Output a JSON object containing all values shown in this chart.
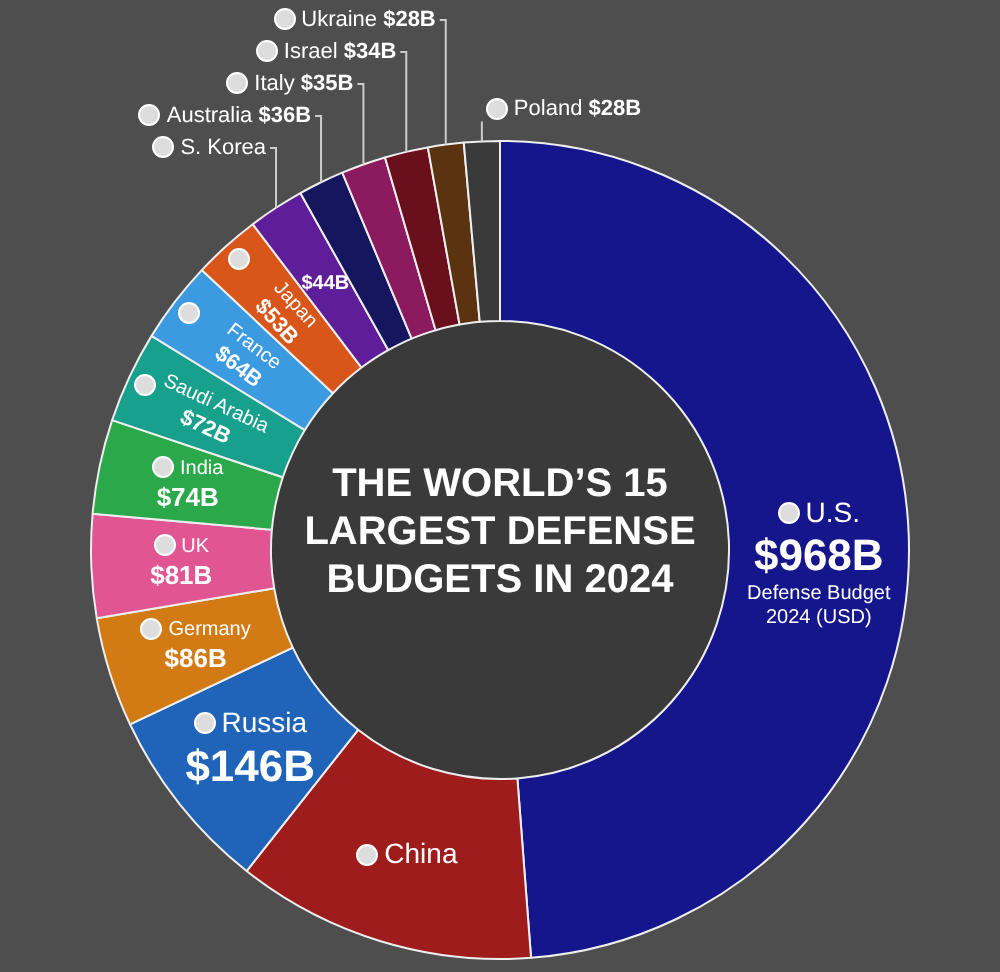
{
  "chart_data": {
    "type": "donut",
    "title": "THE WORLD’S 15 LARGEST DEFENSE BUDGETS IN 2024",
    "categories": [
      "U.S.",
      "China",
      "Russia",
      "Germany",
      "UK",
      "India",
      "Saudi Arabia",
      "France",
      "Japan",
      "S. Korea",
      "Australia",
      "Italy",
      "Israel",
      "Ukraine",
      "Poland"
    ],
    "values": [
      968,
      235,
      146,
      86,
      81,
      74,
      72,
      64,
      53,
      44,
      36,
      35,
      34,
      28,
      28
    ],
    "value_labels": [
      "$968B",
      null,
      "$146B",
      "$86B",
      "$81B",
      "$74B",
      "$72B",
      "$64B",
      "$53B",
      "$44B",
      "$36B",
      "$35B",
      "$34B",
      "$28B",
      "$28B"
    ],
    "colors": [
      "#15168c",
      "#9e1c1c",
      "#1f64b8",
      "#d27a14",
      "#e05592",
      "#2ba84a",
      "#17a08c",
      "#3b9ae0",
      "#d9561a",
      "#5e1e9a",
      "#16165e",
      "#8c1a5e",
      "#6a0f1c",
      "#5a3410",
      "#3a3a3a"
    ],
    "annotations": [
      "Defense Budget 2024 (USD)"
    ]
  }
}
